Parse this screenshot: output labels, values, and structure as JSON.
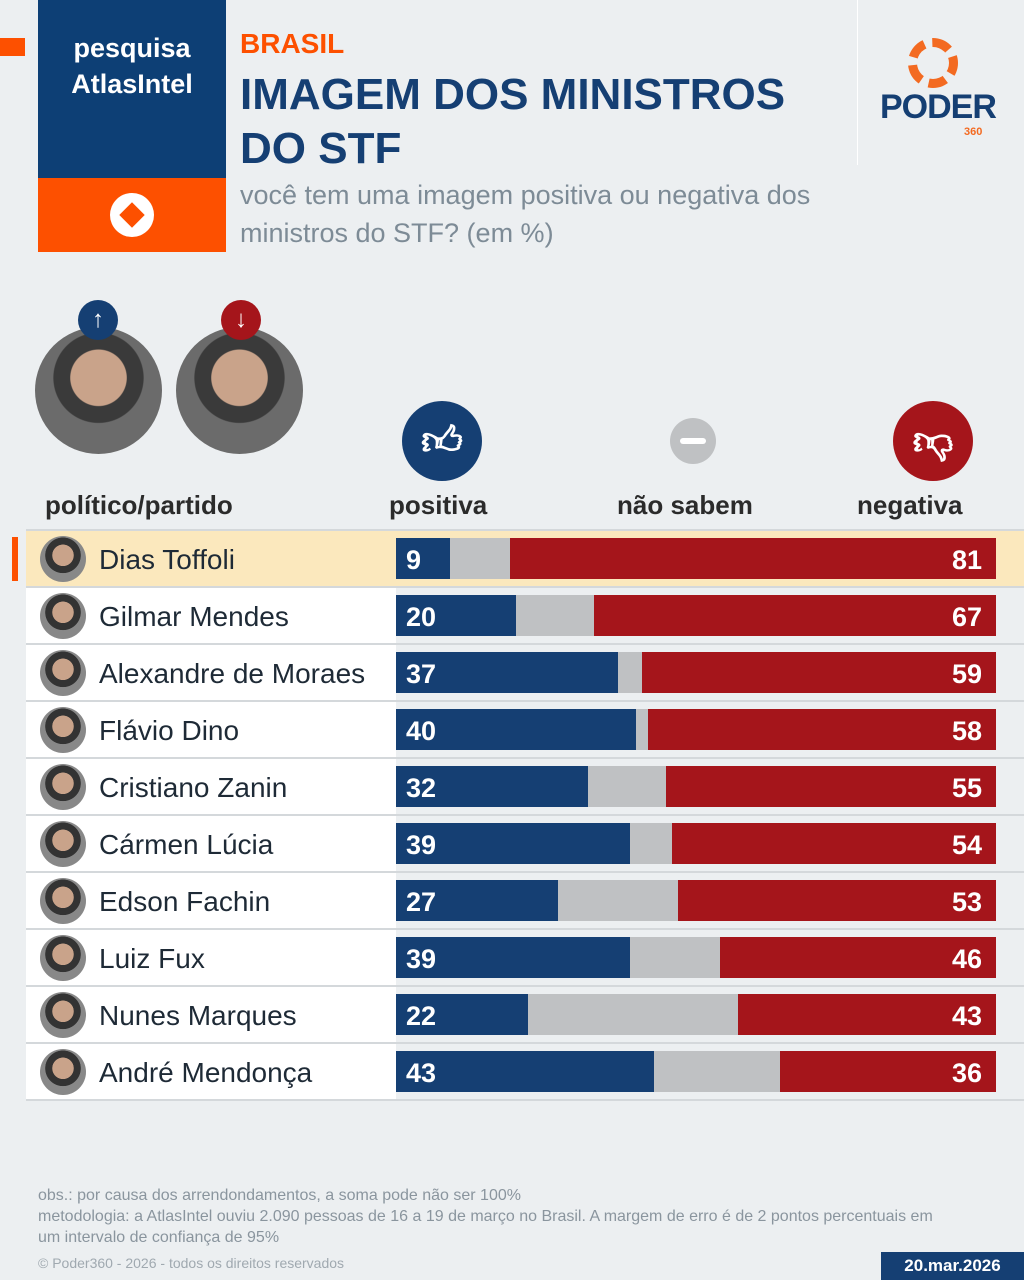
{
  "brand": {
    "line1": "pesquisa",
    "line2": "AtlasIntel"
  },
  "kicker": "BRASIL",
  "title": "IMAGEM DOS MINISTROS DO STF",
  "subtitle": "você tem uma imagem positiva ou negativa dos ministros do STF? (em %)",
  "logo": {
    "name": "PODER",
    "sub": "360"
  },
  "colors": {
    "positive": "#153f73",
    "unknown": "#bfc1c3",
    "negative": "#a5151b",
    "accent": "#fd5000"
  },
  "chart_data": {
    "type": "bar",
    "stacked": true,
    "title": "IMAGEM DOS MINISTROS DO STF",
    "column_header": "político/partido",
    "legend": [
      "positiva",
      "não sabem",
      "negativa"
    ],
    "categories": [
      "Dias Toffoli",
      "Gilmar Mendes",
      "Alexandre de Moraes",
      "Flávio Dino",
      "Cristiano Zanin",
      "Cármen Lúcia",
      "Edson Fachin",
      "Luiz Fux",
      "Nunes Marques",
      "André Mendonça"
    ],
    "series": [
      {
        "name": "positiva",
        "values": [
          9,
          20,
          37,
          40,
          32,
          39,
          27,
          39,
          22,
          43
        ]
      },
      {
        "name": "não sabem",
        "values": [
          10,
          13,
          4,
          2,
          13,
          7,
          20,
          15,
          35,
          21
        ]
      },
      {
        "name": "negativa",
        "values": [
          81,
          67,
          59,
          58,
          55,
          54,
          53,
          46,
          43,
          36
        ]
      }
    ],
    "xlim": [
      0,
      100
    ],
    "highlight": "Dias Toffoli"
  },
  "footer": {
    "obs": "obs.: por causa dos arrendondamentos, a soma pode não ser 100%",
    "method": "metodologia: a AtlasIntel ouviu 2.090 pessoas de 16 a 19 de março no Brasil. A margem de erro é de 2 pontos percentuais em um intervalo de confiança de 95%",
    "copyright": "© Poder360 - 2026 - todos os direitos reservados",
    "date": "20.mar.2026"
  }
}
